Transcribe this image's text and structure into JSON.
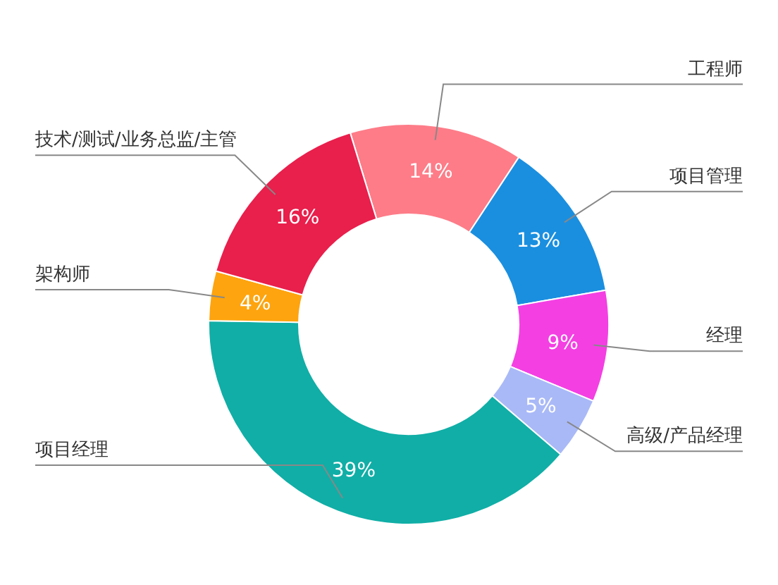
{
  "chart_data": {
    "type": "donut",
    "categories": [
      "工程师",
      "项目管理",
      "经理",
      "高级/产品经理",
      "项目经理",
      "架构师",
      "技术/测试/业务总监/主管"
    ],
    "values": [
      14,
      13,
      9,
      5,
      39,
      4,
      16
    ],
    "value_labels": [
      "14%",
      "13%",
      "9%",
      "5%",
      "39%",
      "4%",
      "16%"
    ],
    "colors": [
      "#fd7c88",
      "#1a8fe0",
      "#f43fe3",
      "#a9b9f7",
      "#10aea6",
      "#fea40e",
      "#e91f4c"
    ],
    "legend": false
  }
}
